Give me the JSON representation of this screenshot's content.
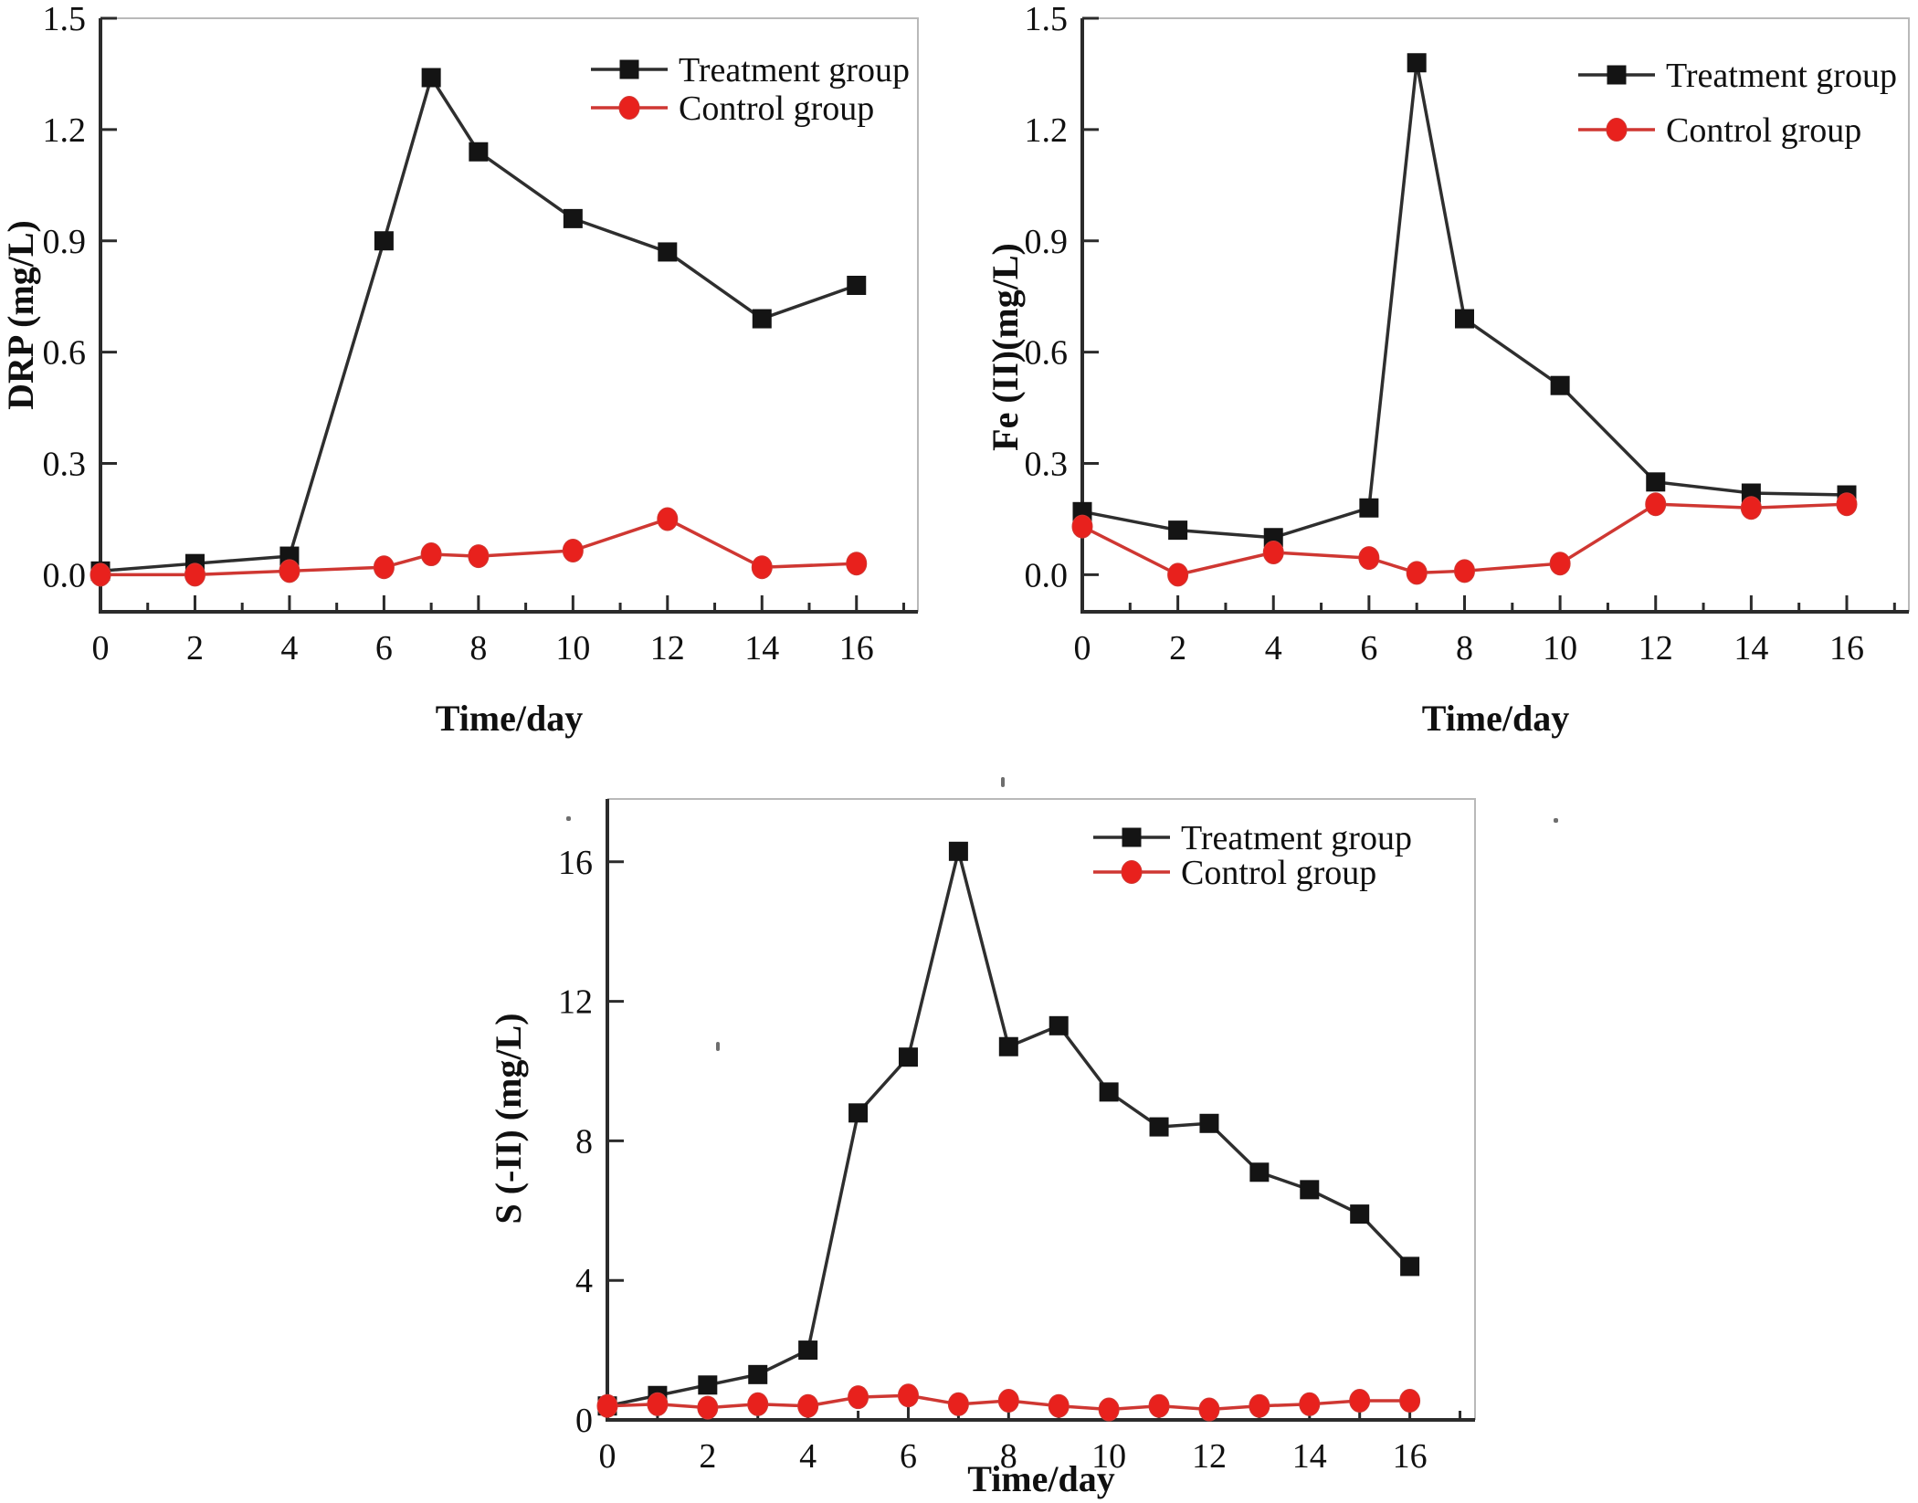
{
  "figure": {
    "background": "#ffffff",
    "colors": {
      "treatment_line": "#2e2e2e",
      "treatment_marker": "#141414",
      "control_line": "#cf3732",
      "control_marker": "#e8211d",
      "axis": "#2b2b2b",
      "frame": "#b9b9b9",
      "text": "#101010"
    },
    "legend": {
      "treatment_label": "Treatment group",
      "control_label": "Control group"
    }
  },
  "chart_data": [
    {
      "id": "drp",
      "type": "line",
      "title": "",
      "xlabel": "Time/day",
      "ylabel": "DRP (mg/L)",
      "xlim": [
        0,
        17.3
      ],
      "ylim": [
        -0.1,
        1.5
      ],
      "grid": false,
      "legend_position": "top-right",
      "xtick_values": [
        0,
        2,
        4,
        6,
        8,
        10,
        12,
        14,
        16
      ],
      "xtick_labels": [
        "0",
        "2",
        "4",
        "6",
        "8",
        "10",
        "12",
        "14",
        "16"
      ],
      "xtick_minor": [
        1,
        3,
        5,
        7,
        9,
        11,
        13,
        15,
        17
      ],
      "ytick_values": [
        0.0,
        0.3,
        0.6,
        0.9,
        1.2,
        1.5
      ],
      "ytick_labels": [
        "0.0",
        "0.3",
        "0.6",
        "0.9",
        "1.2",
        "1.5"
      ],
      "ytick_minor": [],
      "x": [
        0,
        2,
        4,
        6,
        7,
        8,
        10,
        12,
        14,
        16
      ],
      "series": [
        {
          "name": "Treatment group",
          "marker": "square",
          "values": [
            0.01,
            0.03,
            0.05,
            0.9,
            1.34,
            1.14,
            0.96,
            0.87,
            0.69,
            0.78
          ]
        },
        {
          "name": "Control group",
          "marker": "circle",
          "values": [
            0.0,
            0.0,
            0.01,
            0.02,
            0.055,
            0.05,
            0.065,
            0.15,
            0.02,
            0.03
          ]
        }
      ]
    },
    {
      "id": "fe",
      "type": "line",
      "title": "",
      "xlabel": "Time/day",
      "ylabel": "Fe (II)(mg/L)",
      "xlim": [
        0,
        17.3
      ],
      "ylim": [
        -0.1,
        1.5
      ],
      "grid": false,
      "legend_position": "top-right",
      "xtick_values": [
        0,
        2,
        4,
        6,
        8,
        10,
        12,
        14,
        16
      ],
      "xtick_labels": [
        "0",
        "2",
        "4",
        "6",
        "8",
        "10",
        "12",
        "14",
        "16"
      ],
      "xtick_minor": [
        1,
        3,
        5,
        7,
        9,
        11,
        13,
        15,
        17
      ],
      "ytick_values": [
        0.0,
        0.3,
        0.6,
        0.9,
        1.2,
        1.5
      ],
      "ytick_labels": [
        "0.0",
        "0.3",
        "0.6",
        "0.9",
        "1.2",
        "1.5"
      ],
      "ytick_minor": [],
      "x": [
        0,
        2,
        4,
        6,
        7,
        8,
        10,
        12,
        14,
        16
      ],
      "series": [
        {
          "name": "Treatment group",
          "marker": "square",
          "values": [
            0.17,
            0.12,
            0.1,
            0.18,
            1.38,
            0.69,
            0.51,
            0.25,
            0.22,
            0.215
          ]
        },
        {
          "name": "Control group",
          "marker": "circle",
          "values": [
            0.13,
            0.0,
            0.06,
            0.045,
            0.005,
            0.01,
            0.03,
            0.19,
            0.18,
            0.19
          ]
        }
      ]
    },
    {
      "id": "s",
      "type": "line",
      "title": "",
      "xlabel": "Time/day",
      "ylabel": "S (-II) (mg/L)",
      "xlim": [
        0,
        17.3
      ],
      "ylim": [
        0,
        17.8
      ],
      "grid": false,
      "legend_position": "top-right",
      "xtick_values": [
        0,
        2,
        4,
        6,
        8,
        10,
        12,
        14,
        16
      ],
      "xtick_labels": [
        "0",
        "2",
        "4",
        "6",
        "8",
        "10",
        "12",
        "14",
        "16"
      ],
      "xtick_minor": [
        1,
        3,
        5,
        7,
        9,
        11,
        13,
        15,
        17
      ],
      "ytick_values": [
        0,
        4,
        8,
        12,
        16
      ],
      "ytick_labels": [
        "0",
        "4",
        "8",
        "12",
        "16"
      ],
      "ytick_minor": [],
      "x": [
        0,
        1,
        2,
        3,
        4,
        5,
        6,
        7,
        8,
        9,
        10,
        11,
        12,
        13,
        14,
        15,
        16
      ],
      "series": [
        {
          "name": "Treatment group",
          "marker": "square",
          "values": [
            0.4,
            0.7,
            1.0,
            1.3,
            2.0,
            8.8,
            10.4,
            16.3,
            10.7,
            11.3,
            9.4,
            8.4,
            8.5,
            7.1,
            6.6,
            5.9,
            4.4
          ]
        },
        {
          "name": "Control group",
          "marker": "circle",
          "values": [
            0.4,
            0.45,
            0.35,
            0.45,
            0.4,
            0.65,
            0.7,
            0.45,
            0.55,
            0.4,
            0.3,
            0.4,
            0.3,
            0.4,
            0.45,
            0.55,
            0.55
          ]
        }
      ]
    }
  ]
}
